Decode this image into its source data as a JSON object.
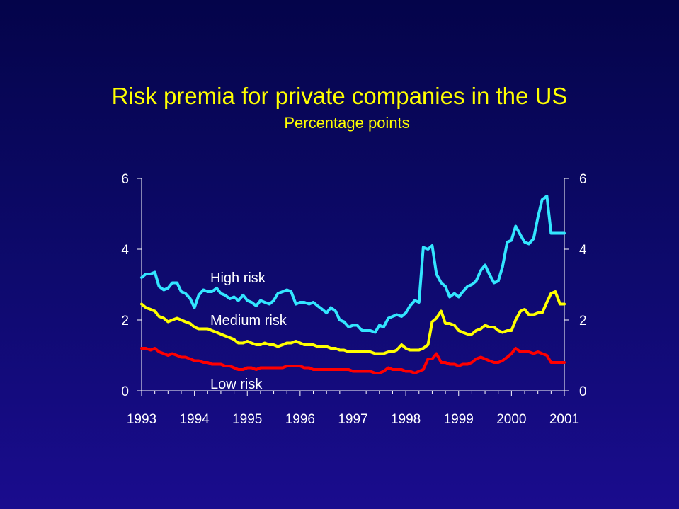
{
  "slide": {
    "title": "Risk premia for private companies in the US",
    "subtitle": "Percentage points"
  },
  "colors": {
    "background_top": "#04044a",
    "background_bottom": "#1a0c8e",
    "title": "#ffff00",
    "axis": "#ffffff",
    "high_risk": "#33e6ff",
    "medium_risk": "#ffff00",
    "low_risk": "#ff0000"
  },
  "chart_data": {
    "type": "line",
    "title": "Risk premia for private companies in the US",
    "subtitle": "Percentage points",
    "xlabel": "",
    "ylabel": "",
    "xlim": [
      1993,
      2001
    ],
    "ylim": [
      0,
      6
    ],
    "x_ticks": [
      "1993",
      "1994",
      "1995",
      "1996",
      "1997",
      "1998",
      "1999",
      "2000",
      "2001"
    ],
    "y_ticks_left": [
      "0",
      "2",
      "4",
      "6"
    ],
    "y_ticks_right": [
      "0",
      "2",
      "4",
      "6"
    ],
    "grid": false,
    "legend": "inline labels",
    "series": [
      {
        "name": "High risk",
        "color": "#33e6ff",
        "x": [
          1993.0,
          1993.08,
          1993.17,
          1993.25,
          1993.33,
          1993.42,
          1993.5,
          1993.58,
          1993.67,
          1993.75,
          1993.83,
          1993.92,
          1994.0,
          1994.08,
          1994.17,
          1994.25,
          1994.33,
          1994.42,
          1994.5,
          1994.58,
          1994.67,
          1994.75,
          1994.83,
          1994.92,
          1995.0,
          1995.08,
          1995.17,
          1995.25,
          1995.33,
          1995.42,
          1995.5,
          1995.58,
          1995.67,
          1995.75,
          1995.83,
          1995.92,
          1996.0,
          1996.08,
          1996.17,
          1996.25,
          1996.33,
          1996.42,
          1996.5,
          1996.58,
          1996.67,
          1996.75,
          1996.83,
          1996.92,
          1997.0,
          1997.08,
          1997.17,
          1997.25,
          1997.33,
          1997.42,
          1997.5,
          1997.58,
          1997.67,
          1997.75,
          1997.83,
          1997.92,
          1998.0,
          1998.08,
          1998.17,
          1998.25,
          1998.33,
          1998.42,
          1998.5,
          1998.58,
          1998.67,
          1998.75,
          1998.83,
          1998.92,
          1999.0,
          1999.08,
          1999.17,
          1999.25,
          1999.33,
          1999.42,
          1999.5,
          1999.58,
          1999.67,
          1999.75,
          1999.83,
          1999.92,
          2000.0,
          2000.08,
          2000.17,
          2000.25,
          2000.33,
          2000.42,
          2000.5,
          2000.58,
          2000.67,
          2000.75,
          2000.83,
          2000.92,
          2001.0
        ],
        "values": [
          3.2,
          3.3,
          3.3,
          3.35,
          2.95,
          2.85,
          2.9,
          3.05,
          3.05,
          2.8,
          2.75,
          2.6,
          2.35,
          2.7,
          2.85,
          2.8,
          2.8,
          2.9,
          2.75,
          2.7,
          2.6,
          2.65,
          2.55,
          2.7,
          2.55,
          2.5,
          2.4,
          2.55,
          2.5,
          2.45,
          2.55,
          2.75,
          2.8,
          2.85,
          2.8,
          2.45,
          2.5,
          2.5,
          2.45,
          2.5,
          2.4,
          2.3,
          2.2,
          2.35,
          2.25,
          2.0,
          1.95,
          1.8,
          1.85,
          1.85,
          1.7,
          1.7,
          1.7,
          1.65,
          1.85,
          1.8,
          2.05,
          2.1,
          2.15,
          2.1,
          2.2,
          2.4,
          2.55,
          2.5,
          4.05,
          4.0,
          4.1,
          3.3,
          3.05,
          2.95,
          2.65,
          2.75,
          2.65,
          2.8,
          2.95,
          3.0,
          3.1,
          3.4,
          3.55,
          3.3,
          3.05,
          3.1,
          3.5,
          4.2,
          4.25,
          4.65,
          4.4,
          4.2,
          4.15,
          4.3,
          4.9,
          5.4,
          5.5,
          4.45,
          4.45,
          4.45,
          4.45
        ]
      },
      {
        "name": "Medium risk",
        "color": "#ffff00",
        "x": [
          1993.0,
          1993.08,
          1993.17,
          1993.25,
          1993.33,
          1993.42,
          1993.5,
          1993.58,
          1993.67,
          1993.75,
          1993.83,
          1993.92,
          1994.0,
          1994.08,
          1994.17,
          1994.25,
          1994.33,
          1994.42,
          1994.5,
          1994.58,
          1994.67,
          1994.75,
          1994.83,
          1994.92,
          1995.0,
          1995.08,
          1995.17,
          1995.25,
          1995.33,
          1995.42,
          1995.5,
          1995.58,
          1995.67,
          1995.75,
          1995.83,
          1995.92,
          1996.0,
          1996.08,
          1996.17,
          1996.25,
          1996.33,
          1996.42,
          1996.5,
          1996.58,
          1996.67,
          1996.75,
          1996.83,
          1996.92,
          1997.0,
          1997.08,
          1997.17,
          1997.25,
          1997.33,
          1997.42,
          1997.5,
          1997.58,
          1997.67,
          1997.75,
          1997.83,
          1997.92,
          1998.0,
          1998.08,
          1998.17,
          1998.25,
          1998.33,
          1998.42,
          1998.5,
          1998.58,
          1998.67,
          1998.75,
          1998.83,
          1998.92,
          1999.0,
          1999.08,
          1999.17,
          1999.25,
          1999.33,
          1999.42,
          1999.5,
          1999.58,
          1999.67,
          1999.75,
          1999.83,
          1999.92,
          2000.0,
          2000.08,
          2000.17,
          2000.25,
          2000.33,
          2000.42,
          2000.5,
          2000.58,
          2000.67,
          2000.75,
          2000.83,
          2000.92,
          2001.0
        ],
        "values": [
          2.45,
          2.35,
          2.3,
          2.25,
          2.1,
          2.05,
          1.95,
          2.0,
          2.05,
          2.0,
          1.95,
          1.9,
          1.8,
          1.75,
          1.75,
          1.75,
          1.7,
          1.65,
          1.6,
          1.55,
          1.5,
          1.45,
          1.35,
          1.35,
          1.4,
          1.35,
          1.3,
          1.3,
          1.35,
          1.3,
          1.3,
          1.25,
          1.3,
          1.35,
          1.35,
          1.4,
          1.35,
          1.3,
          1.3,
          1.3,
          1.25,
          1.25,
          1.25,
          1.2,
          1.2,
          1.15,
          1.15,
          1.1,
          1.1,
          1.1,
          1.1,
          1.1,
          1.1,
          1.05,
          1.05,
          1.05,
          1.1,
          1.1,
          1.15,
          1.3,
          1.2,
          1.15,
          1.15,
          1.15,
          1.2,
          1.3,
          1.95,
          2.05,
          2.25,
          1.9,
          1.9,
          1.85,
          1.7,
          1.65,
          1.6,
          1.6,
          1.7,
          1.75,
          1.85,
          1.8,
          1.8,
          1.7,
          1.65,
          1.7,
          1.7,
          2.0,
          2.25,
          2.3,
          2.15,
          2.15,
          2.2,
          2.2,
          2.5,
          2.75,
          2.8,
          2.45,
          2.45
        ]
      },
      {
        "name": "Low risk",
        "color": "#ff0000",
        "x": [
          1993.0,
          1993.08,
          1993.17,
          1993.25,
          1993.33,
          1993.42,
          1993.5,
          1993.58,
          1993.67,
          1993.75,
          1993.83,
          1993.92,
          1994.0,
          1994.08,
          1994.17,
          1994.25,
          1994.33,
          1994.42,
          1994.5,
          1994.58,
          1994.67,
          1994.75,
          1994.83,
          1994.92,
          1995.0,
          1995.08,
          1995.17,
          1995.25,
          1995.33,
          1995.42,
          1995.5,
          1995.58,
          1995.67,
          1995.75,
          1995.83,
          1995.92,
          1996.0,
          1996.08,
          1996.17,
          1996.25,
          1996.33,
          1996.42,
          1996.5,
          1996.58,
          1996.67,
          1996.75,
          1996.83,
          1996.92,
          1997.0,
          1997.08,
          1997.17,
          1997.25,
          1997.33,
          1997.42,
          1997.5,
          1997.58,
          1997.67,
          1997.75,
          1997.83,
          1997.92,
          1998.0,
          1998.08,
          1998.17,
          1998.25,
          1998.33,
          1998.42,
          1998.5,
          1998.58,
          1998.67,
          1998.75,
          1998.83,
          1998.92,
          1999.0,
          1999.08,
          1999.17,
          1999.25,
          1999.33,
          1999.42,
          1999.5,
          1999.58,
          1999.67,
          1999.75,
          1999.83,
          1999.92,
          2000.0,
          2000.08,
          2000.17,
          2000.25,
          2000.33,
          2000.42,
          2000.5,
          2000.58,
          2000.67,
          2000.75,
          2000.83,
          2000.92,
          2001.0
        ],
        "values": [
          1.2,
          1.2,
          1.15,
          1.2,
          1.1,
          1.05,
          1.0,
          1.05,
          1.0,
          0.95,
          0.95,
          0.9,
          0.85,
          0.85,
          0.8,
          0.8,
          0.75,
          0.75,
          0.75,
          0.7,
          0.7,
          0.65,
          0.6,
          0.6,
          0.65,
          0.65,
          0.6,
          0.65,
          0.65,
          0.65,
          0.65,
          0.65,
          0.65,
          0.7,
          0.7,
          0.7,
          0.7,
          0.65,
          0.65,
          0.6,
          0.6,
          0.6,
          0.6,
          0.6,
          0.6,
          0.6,
          0.6,
          0.6,
          0.55,
          0.55,
          0.55,
          0.55,
          0.55,
          0.5,
          0.5,
          0.55,
          0.65,
          0.6,
          0.6,
          0.6,
          0.55,
          0.55,
          0.5,
          0.55,
          0.6,
          0.9,
          0.9,
          1.05,
          0.8,
          0.8,
          0.75,
          0.75,
          0.7,
          0.75,
          0.75,
          0.8,
          0.9,
          0.95,
          0.9,
          0.85,
          0.8,
          0.8,
          0.85,
          0.95,
          1.05,
          1.2,
          1.1,
          1.1,
          1.1,
          1.05,
          1.1,
          1.05,
          1.0,
          0.8,
          0.8,
          0.8,
          0.8
        ]
      }
    ],
    "annotations": [
      {
        "text": "High risk",
        "x": 1994.3,
        "y": 3.2
      },
      {
        "text": "Medium risk",
        "x": 1994.3,
        "y": 2.0
      },
      {
        "text": "Low risk",
        "x": 1994.3,
        "y": 0.2
      }
    ]
  }
}
